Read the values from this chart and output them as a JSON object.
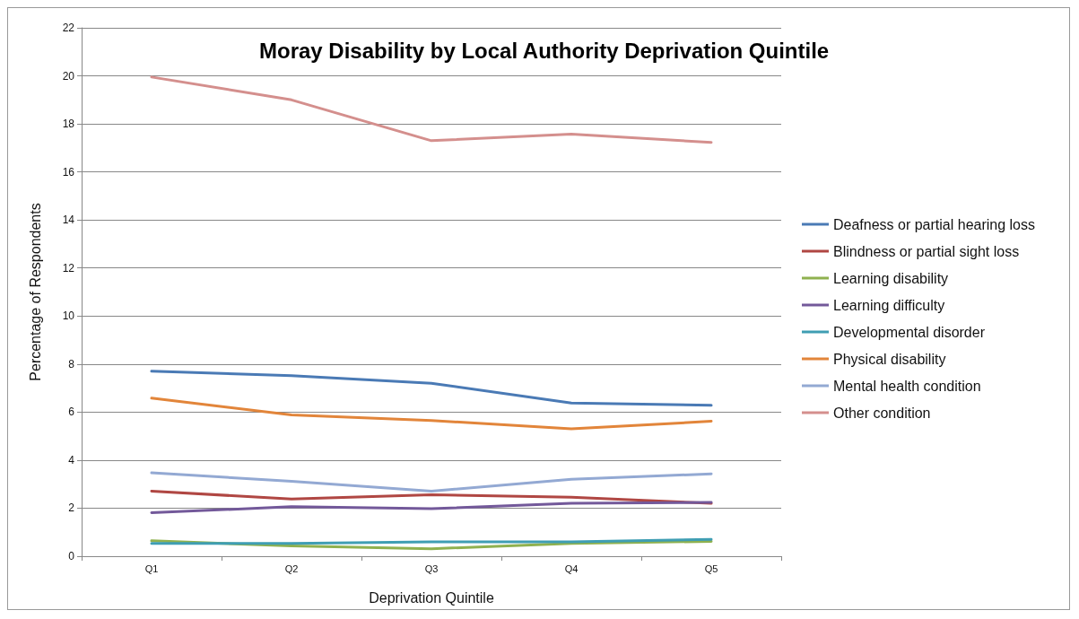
{
  "chart_data": {
    "type": "line",
    "title": "Moray Disability by Local Authority Deprivation Quintile",
    "xlabel": "Deprivation Quintile",
    "ylabel": "Percentage of Respondents",
    "categories": [
      "Q1",
      "Q2",
      "Q3",
      "Q4",
      "Q5"
    ],
    "series": [
      {
        "name": "Deafness or partial hearing loss",
        "color": "#4a7ab5",
        "values": [
          7.7,
          7.52,
          7.2,
          6.38,
          6.28
        ]
      },
      {
        "name": "Blindness or partial sight loss",
        "color": "#b04743",
        "values": [
          2.71,
          2.38,
          2.56,
          2.46,
          2.2
        ]
      },
      {
        "name": "Learning disability",
        "color": "#8fb14f",
        "values": [
          0.64,
          0.43,
          0.31,
          0.53,
          0.62
        ]
      },
      {
        "name": "Learning difficulty",
        "color": "#73599a",
        "values": [
          1.81,
          2.06,
          1.98,
          2.2,
          2.24
        ]
      },
      {
        "name": "Developmental disorder",
        "color": "#3f9eb3",
        "values": [
          0.53,
          0.53,
          0.6,
          0.6,
          0.7
        ]
      },
      {
        "name": "Physical disability",
        "color": "#e2853a",
        "values": [
          6.58,
          5.88,
          5.65,
          5.3,
          5.62
        ]
      },
      {
        "name": "Mental health condition",
        "color": "#93a9d3",
        "values": [
          3.47,
          3.12,
          2.71,
          3.2,
          3.43
        ]
      },
      {
        "name": "Other condition",
        "color": "#d48f8d",
        "values": [
          19.95,
          19.0,
          17.3,
          17.57,
          17.23
        ]
      }
    ],
    "ylim": [
      0,
      22
    ],
    "yticks": [
      0,
      2,
      4,
      6,
      8,
      10,
      12,
      14,
      16,
      18,
      20,
      22
    ],
    "grid": "y",
    "legend": "right",
    "marker": "none",
    "line_style": "solid"
  }
}
